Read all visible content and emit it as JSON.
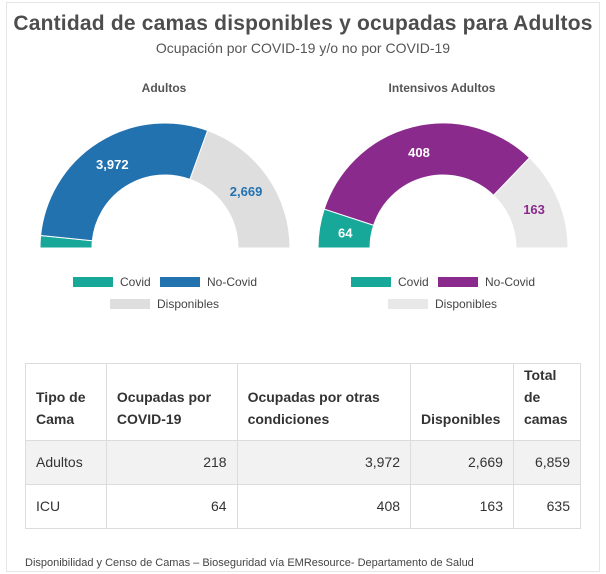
{
  "title": "Cantidad de camas disponibles y ocupadas para Adultos",
  "subtitle": "Ocupación por COVID-19 y/o no por COVID-19",
  "colors": {
    "covid": "#17a899",
    "no_covid_adultos": "#2372b0",
    "no_covid_icu": "#8b2a8d",
    "disponibles_adultos": "#dedede",
    "disponibles_icu": "#e8e8e8",
    "text_dark": "#444444"
  },
  "chart_data": [
    {
      "type": "pie",
      "title": "Adultos",
      "slices": [
        {
          "label": "Covid",
          "value": 218,
          "color_key": "covid"
        },
        {
          "label": "No-Covid",
          "value": 3972,
          "display": "3,972",
          "color_key": "no_covid_adultos"
        },
        {
          "label": "Disponibles",
          "value": 2669,
          "display": "2,669",
          "color_key": "disponibles_adultos"
        }
      ],
      "legend": [
        "Covid",
        "No-Covid",
        "Disponibles"
      ]
    },
    {
      "type": "pie",
      "title": "Intensivos Adultos",
      "slices": [
        {
          "label": "Covid",
          "value": 64,
          "display": "64",
          "color_key": "covid"
        },
        {
          "label": "No-Covid",
          "value": 408,
          "display": "408",
          "color_key": "no_covid_icu"
        },
        {
          "label": "Disponibles",
          "value": 163,
          "display": "163",
          "color_key": "disponibles_icu"
        }
      ],
      "legend": [
        "Covid",
        "No-Covid",
        "Disponibles"
      ]
    }
  ],
  "table": {
    "headers": [
      "Tipo de Cama",
      "Ocupadas por COVID-19",
      "Ocupadas por otras condiciones",
      "Disponibles",
      "Total de camas"
    ],
    "rows": [
      [
        "Adultos",
        "218",
        "3,972",
        "2,669",
        "6,859"
      ],
      [
        "ICU",
        "64",
        "408",
        "163",
        "635"
      ]
    ]
  },
  "footer": "Disponibilidad y Censo de Camas – Bioseguridad vía EMResource- Departamento de Salud"
}
